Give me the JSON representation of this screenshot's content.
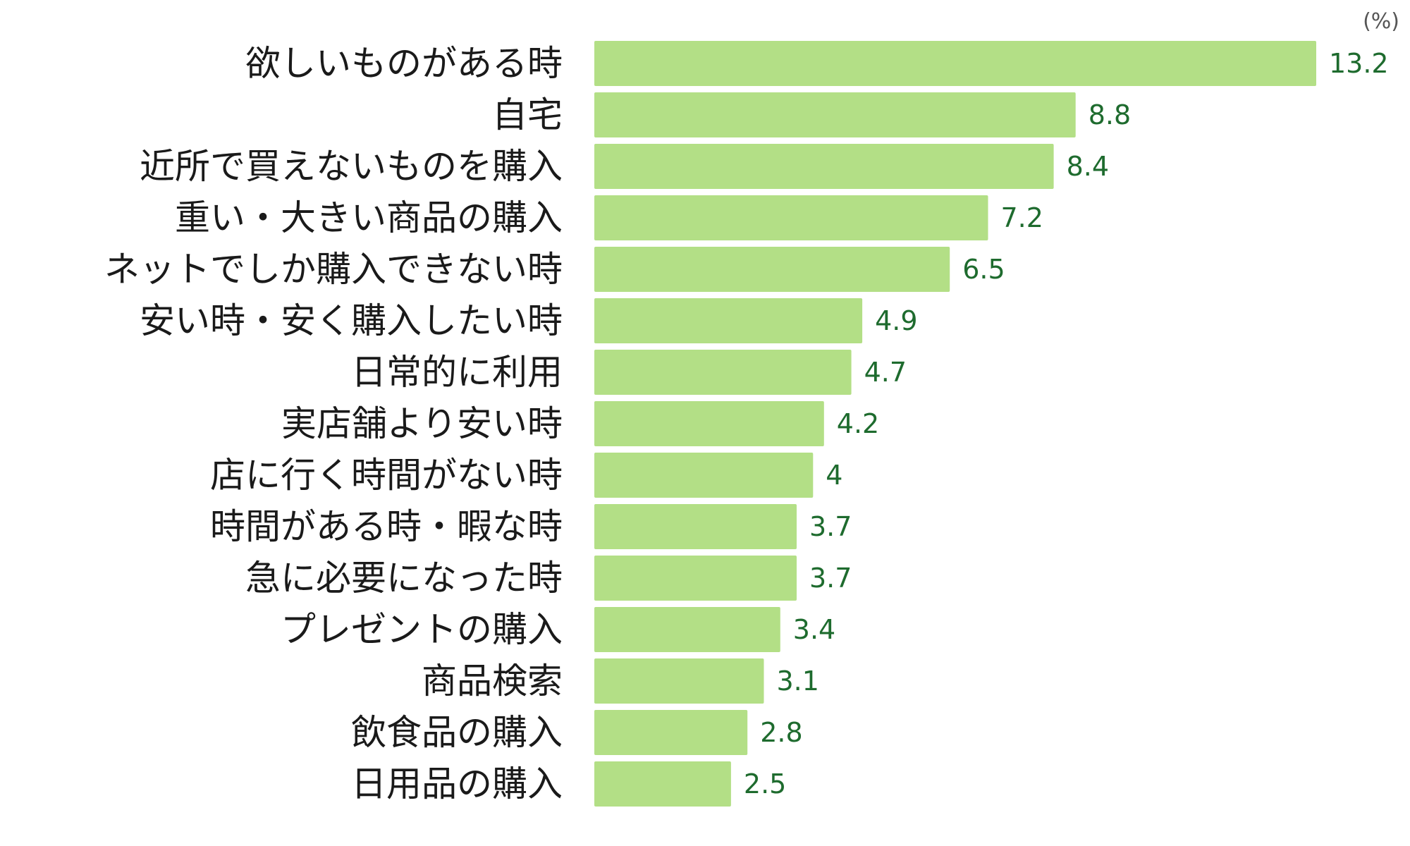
{
  "chart_data": {
    "type": "bar",
    "orientation": "horizontal",
    "unit_label": "(%)",
    "categories": [
      "欲しいものがある時",
      "自宅",
      "近所で買えないものを購入",
      "重い・大きい商品の購入",
      "ネットでしか購入できない時",
      "安い時・安く購入したい時",
      "日常的に利用",
      "実店舗より安い時",
      "店に行く時間がない時",
      "時間がある時・暇な時",
      "急に必要になった時",
      "プレゼントの購入",
      "商品検索",
      "飲食品の購入",
      "日用品の購入"
    ],
    "values": [
      13.2,
      8.8,
      8.4,
      7.2,
      6.5,
      4.9,
      4.7,
      4.2,
      4,
      3.7,
      3.7,
      3.4,
      3.1,
      2.8,
      2.5
    ],
    "value_labels": [
      "13.2",
      "8.8",
      "8.4",
      "7.2",
      "6.5",
      "4.9",
      "4.7",
      "4.2",
      "4",
      "3.7",
      "3.7",
      "3.4",
      "3.1",
      "2.8",
      "2.5"
    ],
    "xlim": [
      0,
      13.2
    ],
    "grid": false,
    "legend": "none",
    "colors": {
      "bar": "#b3df86",
      "value_text": "#1e6b2e",
      "category_text": "#1a1a1a",
      "unit_text": "#555555"
    }
  }
}
